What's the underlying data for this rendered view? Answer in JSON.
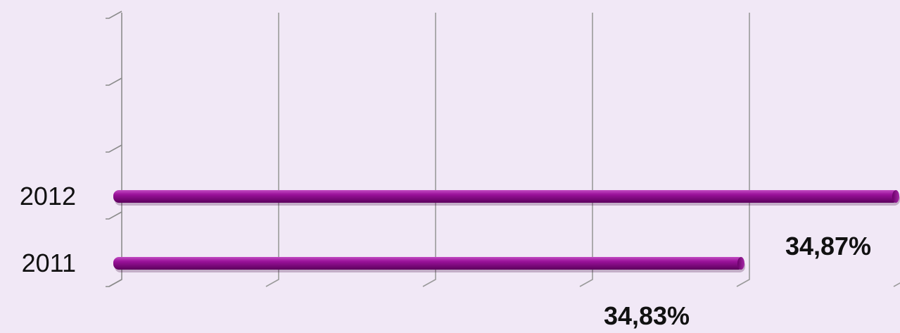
{
  "chart_data": {
    "type": "bar",
    "orientation": "horizontal",
    "categories": [
      "2011",
      "2012"
    ],
    "values": [
      34.83,
      34.87
    ],
    "value_labels": [
      "34,83%",
      "34,87%"
    ],
    "grid": true,
    "bar_color": "#8b0a8b",
    "background_color": "#f1e8f6"
  }
}
